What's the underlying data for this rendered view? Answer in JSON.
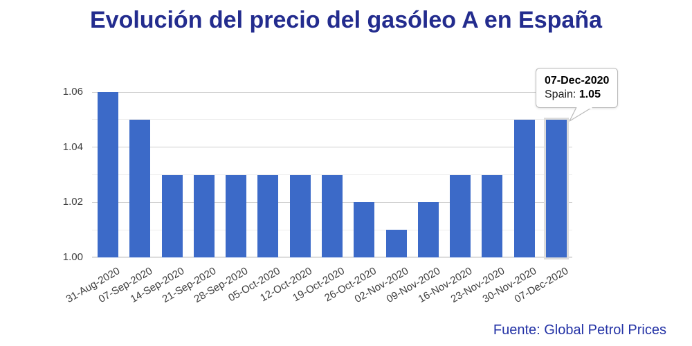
{
  "title": "Evolución del precio del gasóleo A en España",
  "source": "Fuente: Global Petrol Prices",
  "tooltip": {
    "date": "07-Dec-2020",
    "series_label": "Spain:",
    "value": "1.05"
  },
  "colors": {
    "bar": "#3c6ac8",
    "bar_highlight_outline": "#dcdcdc",
    "title": "#232c8e",
    "source": "#2433a6",
    "axis_text": "#3d3d3d",
    "gridline_major": "#cccccc",
    "gridline_minor": "#ededed",
    "baseline": "#a9a9a9",
    "tooltip_border": "#b9b9b9"
  },
  "chart_data": {
    "type": "bar",
    "title": "Evolución del precio del gasóleo A en España",
    "xlabel": "",
    "ylabel": "",
    "categories": [
      "31-Aug-2020",
      "07-Sep-2020",
      "14-Sep-2020",
      "21-Sep-2020",
      "28-Sep-2020",
      "05-Oct-2020",
      "12-Oct-2020",
      "19-Oct-2020",
      "26-Oct-2020",
      "02-Nov-2020",
      "09-Nov-2020",
      "16-Nov-2020",
      "23-Nov-2020",
      "30-Nov-2020",
      "07-Dec-2020"
    ],
    "values": [
      1.06,
      1.05,
      1.03,
      1.03,
      1.03,
      1.03,
      1.03,
      1.03,
      1.02,
      1.01,
      1.02,
      1.03,
      1.03,
      1.05,
      1.05
    ],
    "series_name": "Spain",
    "ylim": [
      1.0,
      1.06
    ],
    "yticks": [
      1.0,
      1.02,
      1.04,
      1.06
    ],
    "minor_gridlines": [
      1.01,
      1.03,
      1.05
    ],
    "grid": "on",
    "legend": "none",
    "highlighted_index": 14
  }
}
